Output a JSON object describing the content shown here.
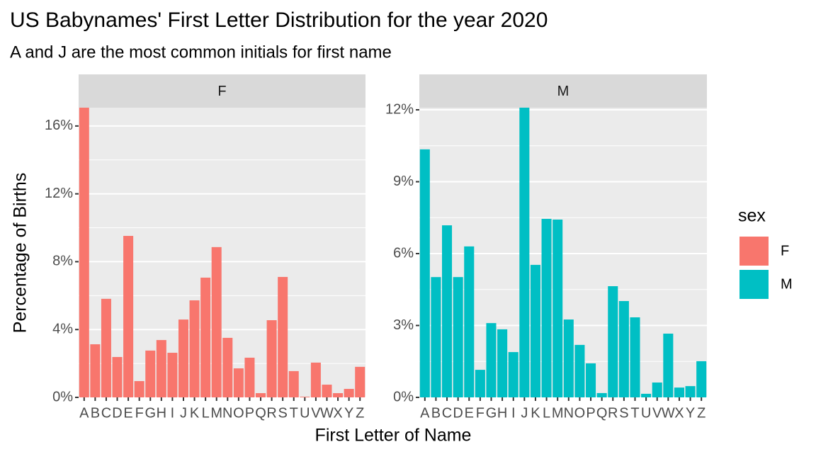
{
  "chart_data": {
    "type": "bar",
    "title": "US Babynames' First Letter Distribution for the year 2020",
    "subtitle": "A and J are the most common initials for first name",
    "xlabel": "First Letter of Name",
    "ylabel": "Percentage of Births",
    "legend_title": "sex",
    "legend": "right",
    "grid": true,
    "categories": [
      "A",
      "B",
      "C",
      "D",
      "E",
      "F",
      "G",
      "H",
      "I",
      "J",
      "K",
      "L",
      "M",
      "N",
      "O",
      "P",
      "Q",
      "R",
      "S",
      "T",
      "U",
      "V",
      "W",
      "X",
      "Y",
      "Z"
    ],
    "facets": [
      {
        "name": "F",
        "color": "#F8766D",
        "values": [
          17.08,
          3.13,
          5.81,
          2.38,
          9.52,
          0.96,
          2.76,
          3.38,
          2.63,
          4.59,
          5.72,
          7.06,
          8.86,
          3.51,
          1.71,
          2.34,
          0.25,
          4.55,
          7.1,
          1.55,
          0.04,
          2.05,
          0.75,
          0.25,
          0.5,
          1.8
        ],
        "ylim": [
          0,
          17.08
        ],
        "yticks": [
          {
            "value": 0,
            "label": "0%"
          },
          {
            "value": 4,
            "label": "4%"
          },
          {
            "value": 8,
            "label": "8%"
          },
          {
            "value": 12,
            "label": "12%"
          },
          {
            "value": 16,
            "label": "16%"
          }
        ]
      },
      {
        "name": "M",
        "color": "#00BFC4",
        "values": [
          10.35,
          5.02,
          7.18,
          5.02,
          6.3,
          1.15,
          3.1,
          2.84,
          1.89,
          12.09,
          5.53,
          7.45,
          7.42,
          3.25,
          2.19,
          1.42,
          0.18,
          4.64,
          4.02,
          3.34,
          0.15,
          0.62,
          2.66,
          0.41,
          0.47,
          1.51
        ],
        "ylim": [
          0,
          12.09
        ],
        "yticks": [
          {
            "value": 0,
            "label": "0%"
          },
          {
            "value": 3,
            "label": "3%"
          },
          {
            "value": 6,
            "label": "6%"
          },
          {
            "value": 9,
            "label": "9%"
          },
          {
            "value": 12,
            "label": "12%"
          }
        ]
      }
    ]
  }
}
